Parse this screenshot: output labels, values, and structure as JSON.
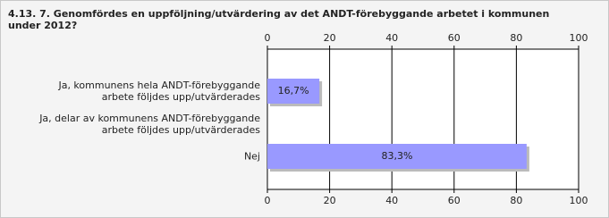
{
  "chart_data": {
    "type": "bar",
    "orientation": "horizontal",
    "title": "4.13. 7. Genomfördes en uppföljning/utvärdering av det ANDT-förebyggande arbetet i kommunen under 2012?",
    "categories": [
      "Ja, kommunens hela ANDT-förebyggande\narbete följdes upp/utvärderades",
      "Ja, delar av kommunens ANDT-förebyggande\narbete följdes upp/utvärderades",
      "Nej"
    ],
    "values": [
      16.7,
      0,
      83.3
    ],
    "value_labels": [
      "16,7%",
      null,
      "83,3%"
    ],
    "color": "#9999ff",
    "xlim": [
      0,
      100
    ],
    "xticks": [
      0,
      20,
      40,
      60,
      80,
      100
    ],
    "grid": true
  }
}
